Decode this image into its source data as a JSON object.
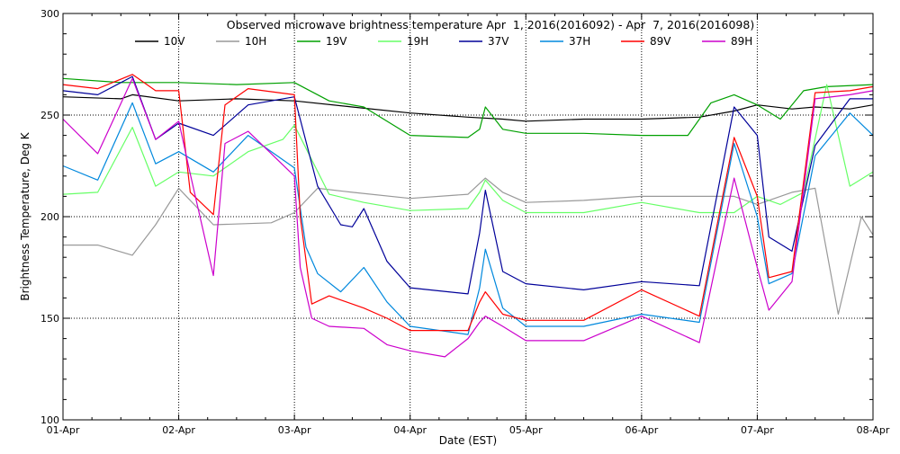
{
  "chart_data": {
    "type": "line",
    "title": "Observed microwave brightness temperature Apr  1, 2016(2016092) - Apr  7, 2016(2016098)",
    "xlabel": "Date (EST)",
    "ylabel": "Brightness Temperature, Deg K",
    "xlim": [
      0,
      7
    ],
    "ylim": [
      100,
      300
    ],
    "x_ticks": [
      {
        "value": 0,
        "label": "01-Apr"
      },
      {
        "value": 1,
        "label": "02-Apr"
      },
      {
        "value": 2,
        "label": "03-Apr"
      },
      {
        "value": 3,
        "label": "04-Apr"
      },
      {
        "value": 4,
        "label": "05-Apr"
      },
      {
        "value": 5,
        "label": "06-Apr"
      },
      {
        "value": 6,
        "label": "07-Apr"
      },
      {
        "value": 7,
        "label": "08-Apr"
      }
    ],
    "y_ticks": [
      {
        "value": 100,
        "label": "100"
      },
      {
        "value": 150,
        "label": "150"
      },
      {
        "value": 200,
        "label": "200"
      },
      {
        "value": 250,
        "label": "250"
      },
      {
        "value": 300,
        "label": "300"
      }
    ],
    "grid": "dotted",
    "legend_position": "top",
    "series": [
      {
        "name": "10V",
        "color": "#000000",
        "x": [
          0,
          0.5,
          0.6,
          1,
          1.5,
          2,
          2.5,
          3,
          3.5,
          3.8,
          4,
          4.5,
          5,
          5.5,
          5.8,
          6,
          6.3,
          6.5,
          6.8,
          7
        ],
        "y": [
          259,
          258,
          260,
          257,
          258,
          257,
          254,
          251,
          249,
          248,
          247,
          248,
          248,
          249,
          252,
          255,
          253,
          254,
          253,
          255
        ]
      },
      {
        "name": "10H",
        "color": "#999999",
        "x": [
          0,
          0.3,
          0.6,
          0.8,
          1,
          1.3,
          1.8,
          2,
          2.2,
          2.5,
          3,
          3.5,
          3.65,
          3.8,
          4,
          4.5,
          5,
          5.5,
          5.8,
          6,
          6.3,
          6.5,
          6.7,
          6.9,
          7
        ],
        "y": [
          186,
          186,
          181,
          196,
          214,
          196,
          197,
          202,
          214,
          212,
          209,
          211,
          219,
          212,
          207,
          208,
          210,
          210,
          210,
          206,
          212,
          214,
          152,
          200,
          191
        ]
      },
      {
        "name": "19V",
        "color": "#00a000",
        "x": [
          0,
          0.5,
          1,
          1.5,
          2,
          2.3,
          2.6,
          3,
          3.5,
          3.6,
          3.65,
          3.8,
          4,
          4.5,
          5,
          5.4,
          5.6,
          5.8,
          6,
          6.2,
          6.4,
          6.6,
          7
        ],
        "y": [
          268,
          266,
          266,
          265,
          266,
          257,
          254,
          240,
          239,
          243,
          254,
          243,
          241,
          241,
          240,
          240,
          256,
          260,
          255,
          248,
          262,
          264,
          265
        ]
      },
      {
        "name": "19H",
        "color": "#66ff66",
        "x": [
          0,
          0.3,
          0.6,
          0.8,
          1,
          1.3,
          1.6,
          1.9,
          2,
          2.3,
          2.6,
          3,
          3.5,
          3.6,
          3.65,
          3.8,
          4,
          4.5,
          5,
          5.5,
          5.8,
          6,
          6.2,
          6.4,
          6.6,
          6.8,
          7
        ],
        "y": [
          211,
          212,
          244,
          215,
          222,
          220,
          232,
          238,
          245,
          211,
          207,
          203,
          204,
          212,
          218,
          208,
          202,
          202,
          207,
          202,
          202,
          210,
          206,
          212,
          265,
          215,
          222
        ]
      },
      {
        "name": "37V",
        "color": "#000099",
        "x": [
          0,
          0.3,
          0.6,
          0.8,
          1,
          1.3,
          1.6,
          2,
          2.2,
          2.4,
          2.5,
          2.6,
          2.8,
          3,
          3.5,
          3.6,
          3.65,
          3.8,
          4,
          4.5,
          5,
          5.5,
          5.8,
          6,
          6.1,
          6.3,
          6.5,
          6.8,
          7
        ],
        "y": [
          262,
          260,
          269,
          238,
          246,
          240,
          255,
          259,
          215,
          196,
          195,
          204,
          178,
          165,
          162,
          192,
          213,
          173,
          167,
          164,
          168,
          166,
          254,
          240,
          190,
          183,
          235,
          258,
          258
        ]
      },
      {
        "name": "37H",
        "color": "#0088dd",
        "x": [
          0,
          0.3,
          0.6,
          0.8,
          1,
          1.3,
          1.6,
          2,
          2.1,
          2.2,
          2.4,
          2.6,
          2.8,
          3,
          3.5,
          3.6,
          3.65,
          3.8,
          4,
          4.5,
          5,
          5.5,
          5.8,
          6,
          6.1,
          6.3,
          6.5,
          6.8,
          7
        ],
        "y": [
          225,
          218,
          256,
          226,
          232,
          222,
          240,
          224,
          185,
          172,
          163,
          175,
          158,
          146,
          142,
          165,
          184,
          155,
          146,
          146,
          152,
          148,
          236,
          200,
          167,
          172,
          230,
          251,
          240
        ]
      },
      {
        "name": "89V",
        "color": "#ff0000",
        "x": [
          0,
          0.3,
          0.6,
          0.8,
          1,
          1.1,
          1.3,
          1.4,
          1.6,
          2,
          2.05,
          2.15,
          2.3,
          2.6,
          2.8,
          3,
          3.5,
          3.6,
          3.65,
          3.8,
          4,
          4.5,
          5,
          5.5,
          5.8,
          6,
          6.1,
          6.3,
          6.5,
          6.8,
          7
        ],
        "y": [
          265,
          263,
          270,
          262,
          262,
          212,
          201,
          255,
          263,
          260,
          200,
          157,
          161,
          155,
          150,
          144,
          144,
          158,
          163,
          152,
          149,
          149,
          164,
          151,
          239,
          210,
          170,
          173,
          261,
          262,
          264
        ]
      },
      {
        "name": "89H",
        "color": "#cc00cc",
        "x": [
          0,
          0.3,
          0.6,
          0.8,
          1,
          1.1,
          1.3,
          1.4,
          1.6,
          2,
          2.05,
          2.15,
          2.3,
          2.6,
          2.8,
          3,
          3.3,
          3.5,
          3.6,
          3.65,
          3.8,
          4,
          4.5,
          5,
          5.5,
          5.8,
          6,
          6.1,
          6.3,
          6.5,
          6.8,
          7
        ],
        "y": [
          248,
          231,
          268,
          238,
          247,
          221,
          171,
          236,
          242,
          220,
          175,
          150,
          146,
          145,
          137,
          134,
          131,
          140,
          148,
          151,
          146,
          139,
          139,
          151,
          138,
          219,
          175,
          154,
          168,
          258,
          260,
          262
        ]
      }
    ]
  }
}
